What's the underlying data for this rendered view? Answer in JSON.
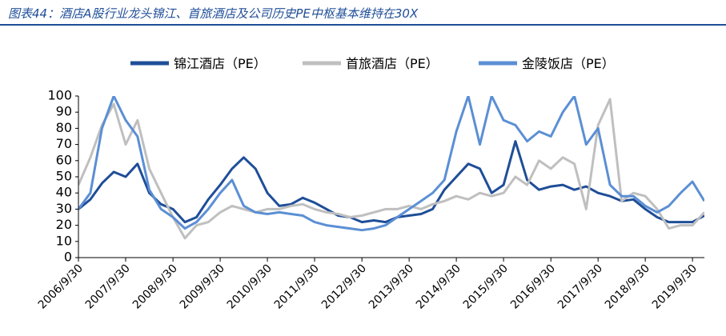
{
  "title": "图表44：酒店A股行业龙头锦江、首旅酒店及公司历史PE中枢基本维持在30X",
  "chart_data": {
    "type": "line",
    "ylim": [
      0,
      100
    ],
    "yticks": [
      0,
      10,
      20,
      30,
      40,
      50,
      60,
      70,
      80,
      90,
      100
    ],
    "xlim": [
      "2006/9/30",
      "2019/12/31"
    ],
    "xtick_labels": [
      "2006/9/30",
      "2007/9/30",
      "2008/9/30",
      "2009/9/30",
      "2010/9/30",
      "2011/9/30",
      "2012/9/30",
      "2013/9/30",
      "2014/9/30",
      "2015/9/30",
      "2016/9/30",
      "2017/9/30",
      "2018/9/30",
      "2019/9/30"
    ],
    "legend_position": "top",
    "series": [
      {
        "name": "锦江酒店（PE）",
        "color": "#1f4e98",
        "x": [
          "2006/9/30",
          "2006/12/31",
          "2007/3/31",
          "2007/6/30",
          "2007/9/30",
          "2007/12/31",
          "2008/3/31",
          "2008/6/30",
          "2008/9/30",
          "2008/12/31",
          "2009/3/31",
          "2009/6/30",
          "2009/9/30",
          "2009/12/31",
          "2010/3/31",
          "2010/6/30",
          "2010/9/30",
          "2010/12/31",
          "2011/3/31",
          "2011/6/30",
          "2011/9/30",
          "2011/12/31",
          "2012/3/31",
          "2012/6/30",
          "2012/9/30",
          "2012/12/31",
          "2013/3/31",
          "2013/6/30",
          "2013/9/30",
          "2013/12/31",
          "2014/3/31",
          "2014/6/30",
          "2014/9/30",
          "2014/12/31",
          "2015/3/31",
          "2015/6/30",
          "2015/9/30",
          "2015/12/31",
          "2016/3/31",
          "2016/6/30",
          "2016/9/30",
          "2016/12/31",
          "2017/3/31",
          "2017/6/30",
          "2017/9/30",
          "2017/12/31",
          "2018/3/31",
          "2018/6/30",
          "2018/9/30",
          "2018/12/31",
          "2019/3/31",
          "2019/6/30",
          "2019/9/30",
          "2019/12/31"
        ],
        "values": [
          30,
          36,
          46,
          53,
          50,
          58,
          40,
          33,
          30,
          22,
          25,
          36,
          45,
          55,
          62,
          55,
          40,
          32,
          33,
          37,
          34,
          30,
          26,
          25,
          22,
          23,
          22,
          25,
          26,
          27,
          30,
          42,
          50,
          58,
          55,
          40,
          45,
          72,
          48,
          42,
          44,
          45,
          42,
          44,
          40,
          38,
          35,
          36,
          30,
          25,
          22,
          22,
          22,
          26
        ]
      },
      {
        "name": "首旅酒店（PE）",
        "color": "#bfbfbf",
        "x": [
          "2006/9/30",
          "2006/12/31",
          "2007/3/31",
          "2007/6/30",
          "2007/9/30",
          "2007/12/31",
          "2008/3/31",
          "2008/6/30",
          "2008/9/30",
          "2008/12/31",
          "2009/3/31",
          "2009/6/30",
          "2009/9/30",
          "2009/12/31",
          "2010/3/31",
          "2010/6/30",
          "2010/9/30",
          "2010/12/31",
          "2011/3/31",
          "2011/6/30",
          "2011/9/30",
          "2011/12/31",
          "2012/3/31",
          "2012/6/30",
          "2012/9/30",
          "2012/12/31",
          "2013/3/31",
          "2013/6/30",
          "2013/9/30",
          "2013/12/31",
          "2014/3/31",
          "2014/6/30",
          "2014/9/30",
          "2014/12/31",
          "2015/3/31",
          "2015/6/30",
          "2015/9/30",
          "2015/12/31",
          "2016/3/31",
          "2016/6/30",
          "2016/9/30",
          "2016/12/31",
          "2017/3/31",
          "2017/6/30",
          "2017/9/30",
          "2017/12/31",
          "2018/3/31",
          "2018/6/30",
          "2018/9/30",
          "2018/12/31",
          "2019/3/31",
          "2019/6/30",
          "2019/9/30",
          "2019/12/31"
        ],
        "values": [
          45,
          62,
          82,
          95,
          70,
          85,
          55,
          40,
          25,
          12,
          20,
          22,
          28,
          32,
          30,
          28,
          30,
          30,
          32,
          33,
          30,
          28,
          27,
          25,
          26,
          28,
          30,
          30,
          32,
          30,
          33,
          35,
          38,
          36,
          40,
          38,
          40,
          50,
          45,
          60,
          55,
          62,
          58,
          30,
          82,
          98,
          35,
          40,
          38,
          30,
          18,
          20,
          20,
          28
        ]
      },
      {
        "name": "金陵饭店（PE）",
        "color": "#5b8fd4",
        "x": [
          "2006/9/30",
          "2006/12/31",
          "2007/3/31",
          "2007/6/30",
          "2007/9/30",
          "2007/12/31",
          "2008/3/31",
          "2008/6/30",
          "2008/9/30",
          "2008/12/31",
          "2009/3/31",
          "2009/6/30",
          "2009/9/30",
          "2009/12/31",
          "2010/3/31",
          "2010/6/30",
          "2010/9/30",
          "2010/12/31",
          "2011/3/31",
          "2011/6/30",
          "2011/9/30",
          "2011/12/31",
          "2012/3/31",
          "2012/6/30",
          "2012/9/30",
          "2012/12/31",
          "2013/3/31",
          "2013/6/30",
          "2013/9/30",
          "2013/12/31",
          "2014/3/31",
          "2014/6/30",
          "2014/9/30",
          "2014/12/31",
          "2015/3/31",
          "2015/6/30",
          "2015/9/30",
          "2015/12/31",
          "2016/3/31",
          "2016/6/30",
          "2016/9/30",
          "2016/12/31",
          "2017/3/31",
          "2017/6/30",
          "2017/9/30",
          "2017/12/31",
          "2018/3/31",
          "2018/6/30",
          "2018/9/30",
          "2018/12/31",
          "2019/3/31",
          "2019/6/30",
          "2019/9/30",
          "2019/12/31"
        ],
        "values": [
          30,
          40,
          80,
          100,
          85,
          75,
          42,
          30,
          25,
          18,
          22,
          30,
          40,
          48,
          32,
          28,
          27,
          28,
          27,
          26,
          22,
          20,
          19,
          18,
          17,
          18,
          20,
          25,
          30,
          35,
          40,
          48,
          78,
          100,
          70,
          100,
          85,
          82,
          72,
          78,
          75,
          90,
          100,
          70,
          80,
          45,
          38,
          38,
          32,
          28,
          32,
          40,
          47,
          35
        ]
      }
    ]
  }
}
